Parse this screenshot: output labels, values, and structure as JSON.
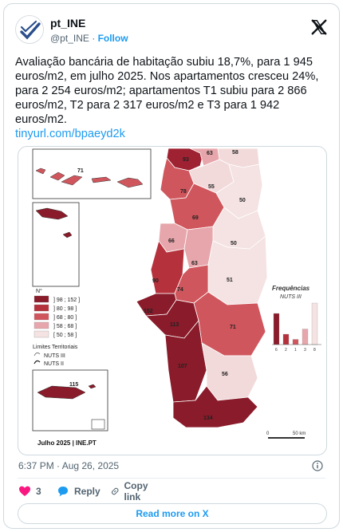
{
  "account": {
    "name": "pt_INE",
    "handle": "@pt_INE",
    "separator": "·",
    "follow_label": "Follow"
  },
  "tweet": {
    "text": "Avaliação bancária de habitação subiu 18,7%, para 1 945 euros/m2, em julho 2025. Nos apartamentos cresceu 24%, para 2 254 euros/m2; apartamentos T1 subiu para 2 866 euros/m2, T2 para 2 317 euros/m2 e T3 para 1 942 euros/m2.",
    "link": "tinyurl.com/bpaeyd2k",
    "timestamp": "6:37 PM · Aug 26, 2025"
  },
  "actions": {
    "likes_count": "3",
    "reply_label": "Reply",
    "copy_label": "Copy link",
    "read_more_label": "Read more on X"
  },
  "map": {
    "regions": [
      {
        "value": "93",
        "color": "#9e2232"
      },
      {
        "value": "63",
        "color": "#e7a6ab"
      },
      {
        "value": "58",
        "color": "#f2dada"
      },
      {
        "value": "78",
        "color": "#d0565d"
      },
      {
        "value": "55",
        "color": "#f2dada"
      },
      {
        "value": "69",
        "color": "#d0565d"
      },
      {
        "value": "50",
        "color": "#f5e3e3"
      },
      {
        "value": "66",
        "color": "#e7a6ab"
      },
      {
        "value": "50",
        "color": "#f5e3e3"
      },
      {
        "value": "63",
        "color": "#e7a6ab"
      },
      {
        "value": "90",
        "color": "#b5313b"
      },
      {
        "value": "51",
        "color": "#f5e3e3"
      },
      {
        "value": "74",
        "color": "#d0565d"
      },
      {
        "value": "152",
        "color": "#8a1b2a"
      },
      {
        "value": "113",
        "color": "#8a1b2a"
      },
      {
        "value": "71",
        "color": "#d0565d"
      },
      {
        "value": "107",
        "color": "#8a1b2a"
      },
      {
        "value": "56",
        "color": "#f2dada"
      },
      {
        "value": "134",
        "color": "#8a1b2a"
      }
    ],
    "azores_value": "71",
    "madeira_value": "115",
    "legend": {
      "title": "N°",
      "classes": [
        {
          "label": "] 98 ; 152 ]",
          "color": "#8a1b2a"
        },
        {
          "label": "] 80 ; 98 ]",
          "color": "#b5313b"
        },
        {
          "label": "] 68 ; 80 ]",
          "color": "#d0565d"
        },
        {
          "label": "] 58 ; 68 ]",
          "color": "#e7a6ab"
        },
        {
          "label": "[ 50 ; 58 ]",
          "color": "#f5e3e3"
        }
      ],
      "limits_title": "Limites Territoriais",
      "nuts3_label": "NUTS III",
      "nuts2_label": "NUTS II"
    },
    "freq": {
      "title": "Frequências",
      "subtitle": "NUTS III",
      "counts": [
        6,
        2,
        1,
        3,
        8
      ]
    },
    "scale": {
      "zero": "0",
      "label": "50 km"
    },
    "credit": "Julho 2025 | INE.PT"
  }
}
